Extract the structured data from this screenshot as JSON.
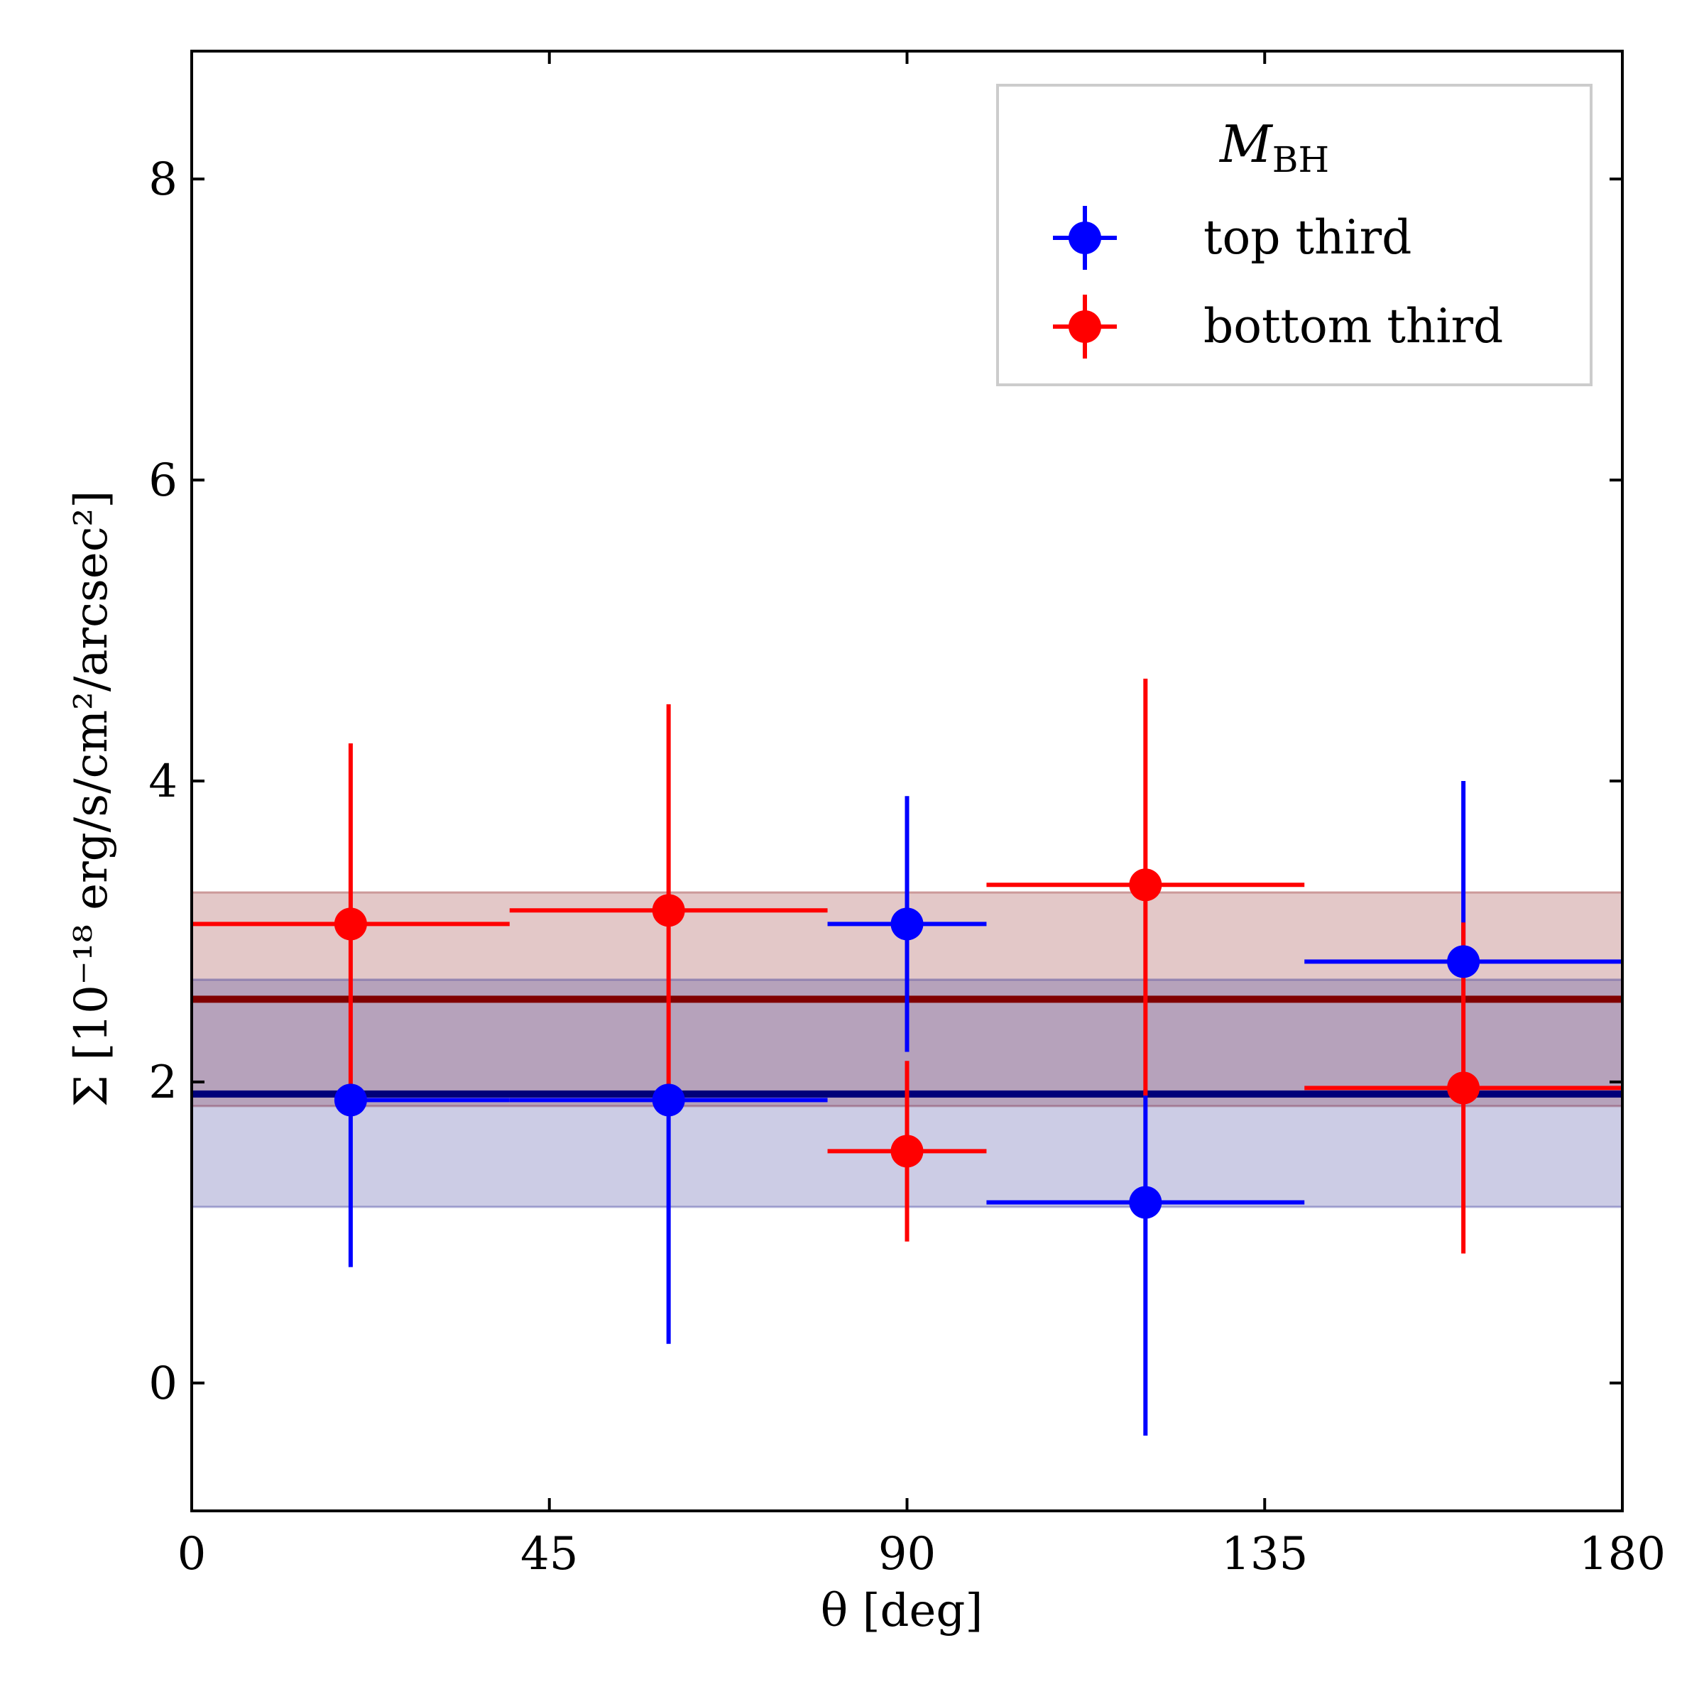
{
  "chart_data": {
    "type": "scatter",
    "title": "",
    "xlabel": "θ [deg]",
    "ylabel": "Σ [10⁻¹⁸ erg/s/cm²/arcsec²]",
    "xlim": [
      0,
      180
    ],
    "ylim": [
      -0.85,
      8.85
    ],
    "xticks": [
      0,
      45,
      90,
      135,
      180
    ],
    "yticks": [
      0,
      2,
      4,
      6,
      8
    ],
    "xtick_labels": [
      "0",
      "45",
      "90",
      "135",
      "180"
    ],
    "ytick_labels": [
      "0",
      "2",
      "4",
      "6",
      "8"
    ],
    "grid": false,
    "legend": {
      "title": "M_BH",
      "title_main": "M",
      "title_sub": "BH",
      "location": "upper right"
    },
    "series": [
      {
        "name": "top third",
        "color": "#0000ff",
        "band_color": "#2b2b94",
        "mean_color": "#00007a",
        "mean": 1.92,
        "band": [
          1.17,
          2.68
        ],
        "points": [
          {
            "x": 20,
            "y": 1.88,
            "xerr_low": 0,
            "xerr_high": 20,
            "yerr_low": 1.11,
            "yerr_high": 0.0
          },
          {
            "x": 60,
            "y": 1.88,
            "xerr_low": 20,
            "xerr_high": 20,
            "yerr_low": 1.62,
            "yerr_high": 0.0
          },
          {
            "x": 90,
            "y": 3.05,
            "xerr_low": 10,
            "xerr_high": 10,
            "yerr_low": 0.85,
            "yerr_high": 0.85
          },
          {
            "x": 120,
            "y": 1.2,
            "xerr_low": 20,
            "xerr_high": 20,
            "yerr_low": 1.55,
            "yerr_high": 0.75
          },
          {
            "x": 160,
            "y": 2.8,
            "xerr_low": 20,
            "xerr_high": 20,
            "yerr_low": 0.0,
            "yerr_high": 1.2
          }
        ]
      },
      {
        "name": "bottom third",
        "color": "#ff0000",
        "band_color": "#8b1a1a",
        "mean_color": "#800000",
        "mean": 2.55,
        "band": [
          1.84,
          3.26
        ],
        "points": [
          {
            "x": 20,
            "y": 3.05,
            "xerr_low": 20,
            "xerr_high": 20,
            "yerr_low": 1.17,
            "yerr_high": 1.2
          },
          {
            "x": 60,
            "y": 3.14,
            "xerr_low": 20,
            "xerr_high": 20,
            "yerr_low": 1.26,
            "yerr_high": 1.37
          },
          {
            "x": 90,
            "y": 1.54,
            "xerr_low": 10,
            "xerr_high": 10,
            "yerr_low": 0.6,
            "yerr_high": 0.6
          },
          {
            "x": 120,
            "y": 3.31,
            "xerr_low": 20,
            "xerr_high": 20,
            "yerr_low": 1.4,
            "yerr_high": 1.37
          },
          {
            "x": 160,
            "y": 1.96,
            "xerr_low": 20,
            "xerr_high": 20,
            "yerr_low": 1.1,
            "yerr_high": 1.1
          }
        ]
      }
    ]
  }
}
